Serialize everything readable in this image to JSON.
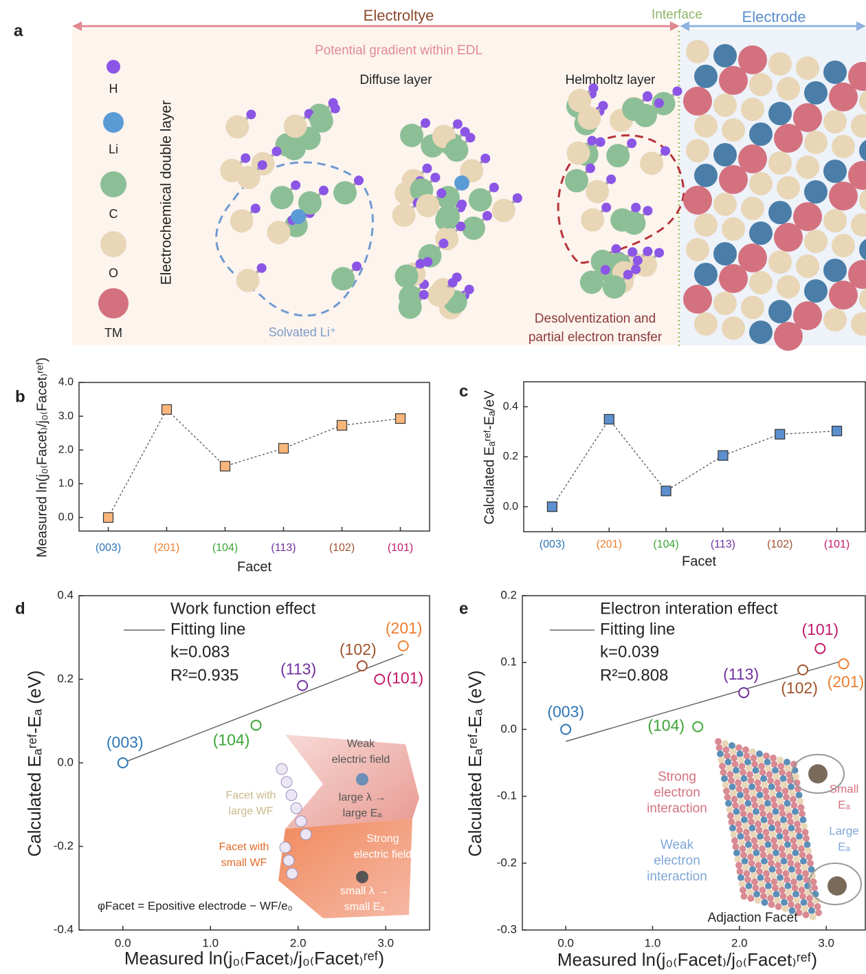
{
  "panel_a": {
    "label": "a",
    "electrolyte": "Electroltye",
    "interface": "Interface",
    "electrode": "Electrode",
    "gradient": "Potential gradient within EDL",
    "edl": "Electrochemical double layer",
    "diffuse": "Diffuse layer",
    "helmholtz": "Helmholtz layer",
    "solvated": "Solvated Li⁺",
    "desolv": [
      "Desolventization and",
      "partial electron transfer"
    ],
    "legend": [
      "H",
      "Li",
      "C",
      "O",
      "TM"
    ]
  },
  "chart_data": [
    {
      "type": "line",
      "panel": "b",
      "x_label": "Facet",
      "y_label": "Measured ln(j₀₍Facet₎/j₀₍Facet₎ʳᵉᶠ)",
      "categories": [
        "(003)",
        "(201)",
        "(104)",
        "(113)",
        "(102)",
        "(101)"
      ],
      "category_colors": [
        "#2e75b6",
        "#ed7d31",
        "#3aa635",
        "#7030a0",
        "#a0522d",
        "#c0186a"
      ],
      "values": [
        0,
        3.2,
        1.52,
        2.05,
        2.73,
        2.93
      ],
      "color": "#f9b67b",
      "ylim": [
        -0.4,
        4.0
      ],
      "yticks": [
        {
          "value": 0,
          "label": "0.0"
        },
        {
          "value": 1,
          "label": "1.0"
        },
        {
          "value": 2,
          "label": "2.0"
        },
        {
          "value": 3,
          "label": "3.0"
        },
        {
          "value": 4,
          "label": "4.0"
        }
      ]
    },
    {
      "type": "line",
      "panel": "c",
      "x_label": "Facet",
      "y_label": "Calculated Eₐʳᵉᶠ-Eₐ/eV",
      "categories": [
        "(003)",
        "(201)",
        "(104)",
        "(113)",
        "(102)",
        "(101)"
      ],
      "category_colors": [
        "#2e75b6",
        "#ed7d31",
        "#3aa635",
        "#7030a0",
        "#a0522d",
        "#c0186a"
      ],
      "values": [
        0,
        0.35,
        0.063,
        0.205,
        0.29,
        0.303
      ],
      "color": "#5b8fce",
      "ylim": [
        -0.1,
        0.5
      ],
      "yticks": [
        {
          "value": 0,
          "label": "0.0"
        },
        0.2,
        0.4
      ]
    },
    {
      "type": "scatter",
      "panel": "d",
      "title": "Work function effect",
      "legend": "Fitting line",
      "annotations": [
        "k=0.083",
        "R²=0.935"
      ],
      "x_label": "Measured ln(j₀₍Facet₎/j₀₍Facet₎ʳᵉᶠ)",
      "y_label": "Calculated Eₐʳᵉᶠ-Eₐ (eV)",
      "x": [
        0,
        1.52,
        2.05,
        2.73,
        2.93,
        3.2
      ],
      "values": [
        0,
        0.09,
        0.185,
        0.232,
        0.2,
        0.28
      ],
      "point_labels": [
        "(003)",
        "(104)",
        "(113)",
        "(102)",
        "(101)",
        "(201)"
      ],
      "point_colors": [
        "#2e75b6",
        "#3aa635",
        "#7030a0",
        "#a0522d",
        "#c0186a",
        "#ed7d31"
      ],
      "fit_line": {
        "x": [
          0,
          3.2
        ],
        "y": [
          0,
          0.26
        ],
        "color": "#666666"
      },
      "xlim": [
        -0.5,
        3.5
      ],
      "ylim": [
        -0.4,
        0.4
      ],
      "xticks": [
        {
          "value": 0,
          "label": "0.0"
        },
        {
          "value": 1,
          "label": "1.0"
        },
        {
          "value": 2,
          "label": "2.0"
        },
        {
          "value": 3,
          "label": "3.0"
        }
      ],
      "yticks": [
        -0.4,
        -0.2,
        {
          "value": 0,
          "label": "0.0"
        },
        0.2,
        0.4
      ],
      "inset": {
        "weak": [
          "Weak",
          "electric field"
        ],
        "large": [
          "large λ →",
          "large Eₐ"
        ],
        "facet_large": [
          "Facet with",
          "large WF"
        ],
        "facet_small": [
          "Facet with",
          "small WF"
        ],
        "strong": [
          "Strong",
          "electric field"
        ],
        "small": [
          "small λ →",
          "small Eₐ"
        ],
        "formula": "φFacet = Epositive electrode − WF/e₀"
      }
    },
    {
      "type": "scatter",
      "panel": "e",
      "title": "Electron interation effect",
      "legend": "Fitting line",
      "annotations": [
        "k=0.039",
        "R²=0.808"
      ],
      "x_label": "Measured ln(j₀₍Facet₎/j₀₍Facet₎ʳᵉᶠ)",
      "y_label": "Calculated Eₐʳᵉᶠ-Eₐ (eV)",
      "x": [
        0,
        1.52,
        2.05,
        2.73,
        2.93,
        3.2
      ],
      "values": [
        0,
        0.004,
        0.055,
        0.089,
        0.121,
        0.098
      ],
      "point_labels": [
        "(003)",
        "(104)",
        "(113)",
        "(102)",
        "(101)",
        "(201)"
      ],
      "point_colors": [
        "#2e75b6",
        "#3aa635",
        "#7030a0",
        "#a0522d",
        "#c0186a",
        "#ed7d31"
      ],
      "fit_line": {
        "x": [
          0,
          3.2
        ],
        "y": [
          -0.018,
          0.103
        ],
        "color": "#666666"
      },
      "xlim": [
        -0.5,
        3.45
      ],
      "ylim": [
        -0.3,
        0.2
      ],
      "xticks": [
        {
          "value": 0,
          "label": "0.0"
        },
        {
          "value": 1,
          "label": "1.0"
        },
        {
          "value": 2,
          "label": "2.0"
        },
        {
          "value": 3,
          "label": "3.0"
        }
      ],
      "yticks": [
        -0.3,
        -0.2,
        -0.1,
        {
          "value": 0,
          "label": "0.0"
        },
        0.1,
        0.2
      ],
      "inset": {
        "strong": [
          "Strong",
          "electron",
          "interaction"
        ],
        "weak": [
          "Weak",
          "electron",
          "interaction"
        ],
        "small": [
          "Small",
          "Eₐ"
        ],
        "large": [
          "Large",
          "Eₐ"
        ],
        "caption": "Adjaction Facet"
      }
    }
  ]
}
